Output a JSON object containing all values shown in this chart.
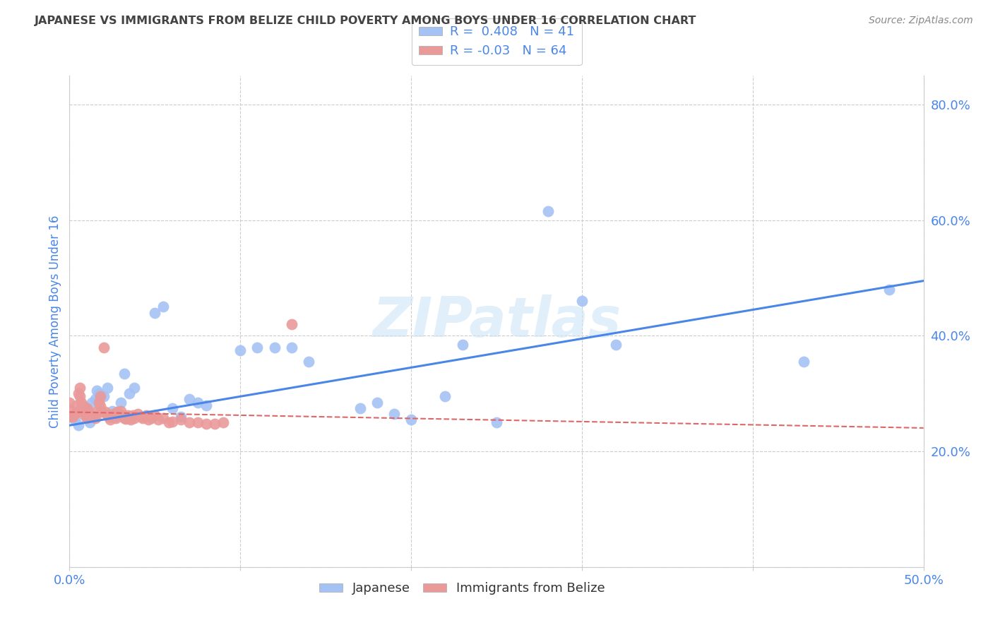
{
  "title": "JAPANESE VS IMMIGRANTS FROM BELIZE CHILD POVERTY AMONG BOYS UNDER 16 CORRELATION CHART",
  "source": "Source: ZipAtlas.com",
  "ylabel": "Child Poverty Among Boys Under 16",
  "watermark": "ZIPatlas",
  "xlim": [
    0.0,
    0.5
  ],
  "ylim": [
    0.0,
    0.85
  ],
  "xtick_vals": [
    0.0,
    0.5
  ],
  "xtick_labels": [
    "0.0%",
    "50.0%"
  ],
  "ytick_vals": [
    0.2,
    0.4,
    0.6,
    0.8
  ],
  "ytick_labels": [
    "20.0%",
    "40.0%",
    "60.0%",
    "80.0%"
  ],
  "grid_yticks": [
    0.0,
    0.2,
    0.4,
    0.6,
    0.8
  ],
  "grid_xticks": [
    0.0,
    0.1,
    0.2,
    0.3,
    0.4,
    0.5
  ],
  "legend_labels": [
    "Japanese",
    "Immigrants from Belize"
  ],
  "blue_color": "#a4c2f4",
  "pink_color": "#ea9999",
  "blue_line_color": "#4a86e8",
  "pink_line_color": "#e06666",
  "title_color": "#434343",
  "axis_color": "#4a86e8",
  "R_blue": 0.408,
  "N_blue": 41,
  "R_pink": -0.03,
  "N_pink": 64,
  "japanese_x": [
    0.003,
    0.005,
    0.008,
    0.01,
    0.012,
    0.013,
    0.015,
    0.016,
    0.017,
    0.02,
    0.022,
    0.025,
    0.027,
    0.03,
    0.032,
    0.035,
    0.038,
    0.05,
    0.055,
    0.06,
    0.065,
    0.07,
    0.075,
    0.08,
    0.1,
    0.11,
    0.12,
    0.13,
    0.14,
    0.17,
    0.18,
    0.19,
    0.2,
    0.22,
    0.23,
    0.25,
    0.28,
    0.3,
    0.32,
    0.43,
    0.48
  ],
  "japanese_y": [
    0.255,
    0.245,
    0.27,
    0.26,
    0.25,
    0.285,
    0.29,
    0.305,
    0.3,
    0.295,
    0.31,
    0.27,
    0.26,
    0.285,
    0.335,
    0.3,
    0.31,
    0.44,
    0.45,
    0.275,
    0.26,
    0.29,
    0.285,
    0.28,
    0.375,
    0.38,
    0.38,
    0.38,
    0.355,
    0.275,
    0.285,
    0.265,
    0.255,
    0.295,
    0.385,
    0.25,
    0.615,
    0.46,
    0.385,
    0.355,
    0.48
  ],
  "belize_x": [
    0.0,
    0.0,
    0.0,
    0.002,
    0.003,
    0.004,
    0.004,
    0.005,
    0.006,
    0.006,
    0.007,
    0.008,
    0.008,
    0.009,
    0.009,
    0.01,
    0.01,
    0.01,
    0.011,
    0.012,
    0.013,
    0.014,
    0.015,
    0.016,
    0.017,
    0.018,
    0.018,
    0.019,
    0.02,
    0.021,
    0.022,
    0.023,
    0.024,
    0.025,
    0.026,
    0.027,
    0.028,
    0.03,
    0.031,
    0.032,
    0.033,
    0.034,
    0.035,
    0.036,
    0.037,
    0.038,
    0.04,
    0.042,
    0.043,
    0.045,
    0.046,
    0.048,
    0.05,
    0.052,
    0.055,
    0.058,
    0.06,
    0.065,
    0.07,
    0.075,
    0.08,
    0.085,
    0.09,
    0.13
  ],
  "belize_y": [
    0.285,
    0.272,
    0.26,
    0.26,
    0.265,
    0.28,
    0.268,
    0.3,
    0.31,
    0.295,
    0.285,
    0.278,
    0.268,
    0.275,
    0.262,
    0.275,
    0.268,
    0.258,
    0.27,
    0.265,
    0.262,
    0.26,
    0.258,
    0.268,
    0.285,
    0.295,
    0.278,
    0.268,
    0.38,
    0.268,
    0.262,
    0.26,
    0.255,
    0.26,
    0.265,
    0.258,
    0.268,
    0.27,
    0.262,
    0.258,
    0.256,
    0.262,
    0.257,
    0.255,
    0.262,
    0.258,
    0.265,
    0.26,
    0.258,
    0.262,
    0.255,
    0.258,
    0.262,
    0.255,
    0.258,
    0.25,
    0.252,
    0.255,
    0.25,
    0.25,
    0.248,
    0.248,
    0.25,
    0.42
  ],
  "blue_intercept": 0.245,
  "blue_slope": 0.5,
  "pink_intercept": 0.268,
  "pink_slope": -0.055
}
